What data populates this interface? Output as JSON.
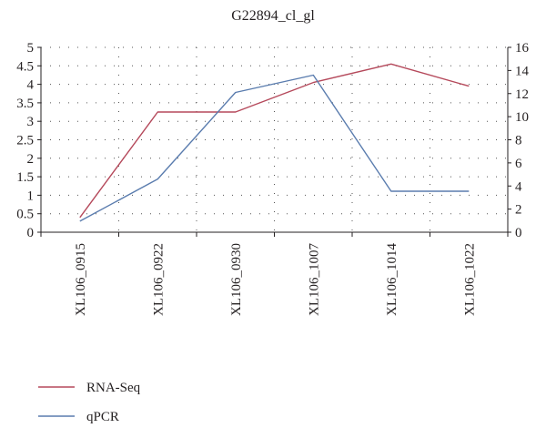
{
  "chart_data": {
    "type": "line",
    "title": "G22894_cl_gl",
    "categories": [
      "XL106_0915",
      "XL106_0922",
      "XL106_0930",
      "XL106_1007",
      "XL106_1014",
      "XL106_1022"
    ],
    "series": [
      {
        "name": "RNA-Seq",
        "axis": "left",
        "color": "#b5495b",
        "values": [
          0.4,
          3.25,
          3.25,
          4.05,
          4.55,
          3.95
        ]
      },
      {
        "name": "qPCR",
        "axis": "right",
        "color": "#5a7cae",
        "values": [
          0.95,
          4.6,
          12.1,
          13.6,
          3.55,
          3.55
        ]
      }
    ],
    "y_left": {
      "ylim": [
        0,
        5
      ],
      "ticks": [
        "0",
        "0.5",
        "1",
        "1.5",
        "2",
        "2.5",
        "3",
        "3.5",
        "4",
        "4.5",
        "5"
      ]
    },
    "y_right": {
      "ylim": [
        0,
        16
      ],
      "ticks": [
        "0",
        "2",
        "4",
        "6",
        "8",
        "10",
        "12",
        "14",
        "16"
      ]
    },
    "grid": "dotted",
    "legend_position": "bottom-left"
  }
}
